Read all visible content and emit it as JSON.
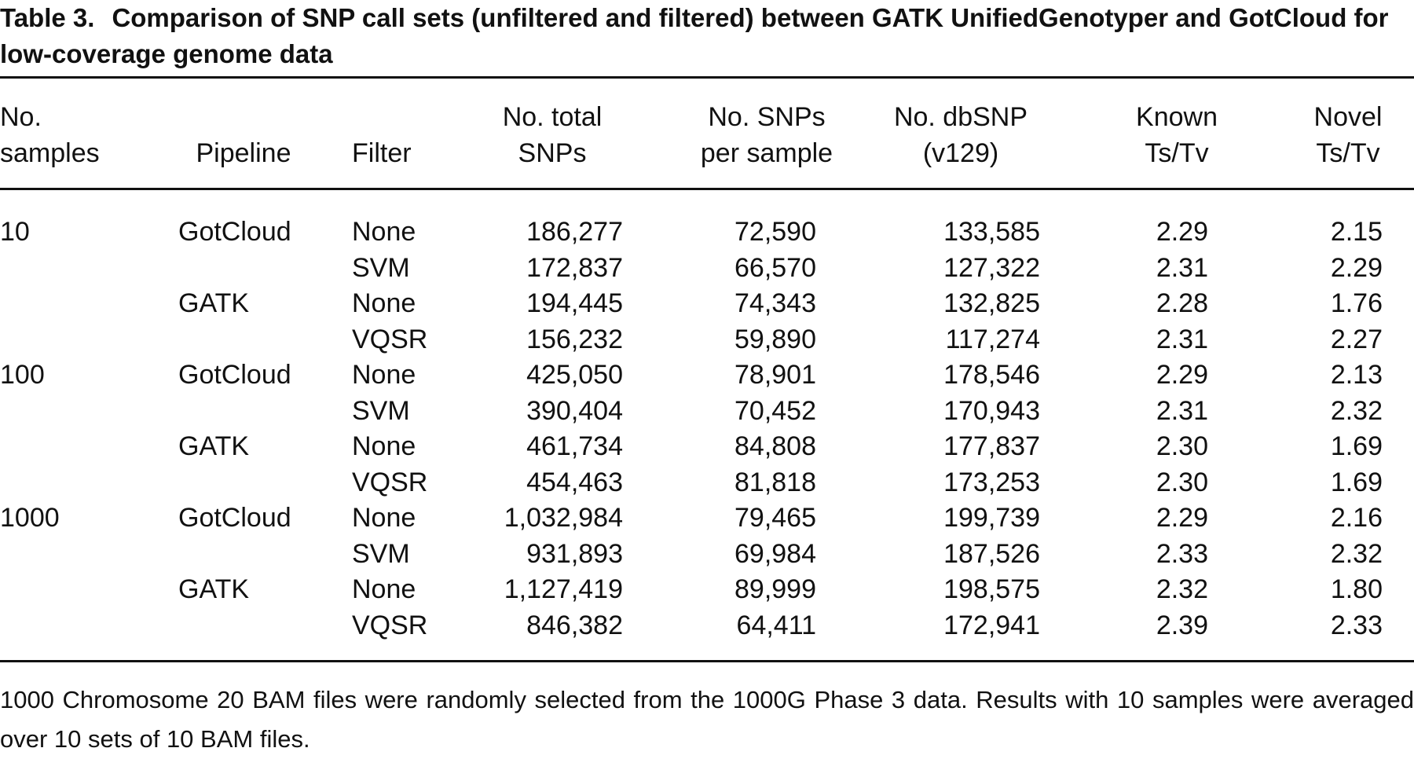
{
  "caption": {
    "label": "Table 3.",
    "text": "Comparison of SNP call sets (unfiltered and filtered) between GATK UnifiedGenotyper and GotCloud for low-coverage genome data"
  },
  "table": {
    "headers": [
      [
        "No.",
        "samples"
      ],
      [
        "Pipeline"
      ],
      [
        "Filter"
      ],
      [
        "No. total",
        "SNPs"
      ],
      [
        "No. SNPs",
        "per sample"
      ],
      [
        "No. dbSNP",
        "(v129)"
      ],
      [
        "Known",
        "Ts/Tv"
      ],
      [
        "Novel",
        "Ts/Tv"
      ]
    ],
    "groups": [
      {
        "samples": "10",
        "pipelines": [
          {
            "name": "GotCloud",
            "rows": [
              [
                "None",
                "186,277",
                "72,590",
                "133,585",
                "2.29",
                "2.15"
              ],
              [
                "SVM",
                "172,837",
                "66,570",
                "127,322",
                "2.31",
                "2.29"
              ]
            ]
          },
          {
            "name": "GATK",
            "rows": [
              [
                "None",
                "194,445",
                "74,343",
                "132,825",
                "2.28",
                "1.76"
              ],
              [
                "VQSR",
                "156,232",
                "59,890",
                "117,274",
                "2.31",
                "2.27"
              ]
            ]
          }
        ]
      },
      {
        "samples": "100",
        "pipelines": [
          {
            "name": "GotCloud",
            "rows": [
              [
                "None",
                "425,050",
                "78,901",
                "178,546",
                "2.29",
                "2.13"
              ],
              [
                "SVM",
                "390,404",
                "70,452",
                "170,943",
                "2.31",
                "2.32"
              ]
            ]
          },
          {
            "name": "GATK",
            "rows": [
              [
                "None",
                "461,734",
                "84,808",
                "177,837",
                "2.30",
                "1.69"
              ],
              [
                "VQSR",
                "454,463",
                "81,818",
                "173,253",
                "2.30",
                "1.69"
              ]
            ]
          }
        ]
      },
      {
        "samples": "1000",
        "pipelines": [
          {
            "name": "GotCloud",
            "rows": [
              [
                "None",
                "1,032,984",
                "79,465",
                "199,739",
                "2.29",
                "2.16"
              ],
              [
                "SVM",
                "931,893",
                "69,984",
                "187,526",
                "2.33",
                "2.32"
              ]
            ]
          },
          {
            "name": "GATK",
            "rows": [
              [
                "None",
                "1,127,419",
                "89,999",
                "198,575",
                "2.32",
                "1.80"
              ],
              [
                "VQSR",
                "846,382",
                "64,411",
                "172,941",
                "2.39",
                "2.33"
              ]
            ]
          }
        ]
      }
    ]
  },
  "footnote": "1000 Chromosome 20 BAM files were randomly selected from the 1000G Phase 3 data. Results with 10 samples were averaged over 10 sets of 10 BAM files."
}
